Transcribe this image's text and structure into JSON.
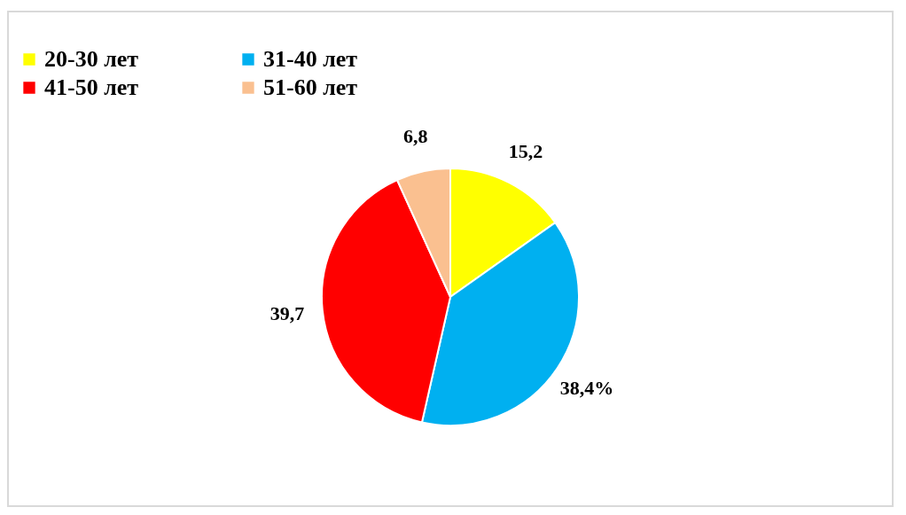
{
  "chart_data": {
    "type": "pie",
    "categories": [
      "20-30 лет",
      "31-40 лет",
      "41-50 лет",
      "51-60 лет"
    ],
    "values": [
      15.2,
      38.4,
      39.7,
      6.8
    ],
    "value_labels": [
      "15,2",
      "38,4%",
      "39,7",
      "6,8"
    ],
    "colors": [
      "#ffff00",
      "#00b0f0",
      "#ff0000",
      "#fac090"
    ],
    "legend": "top"
  }
}
